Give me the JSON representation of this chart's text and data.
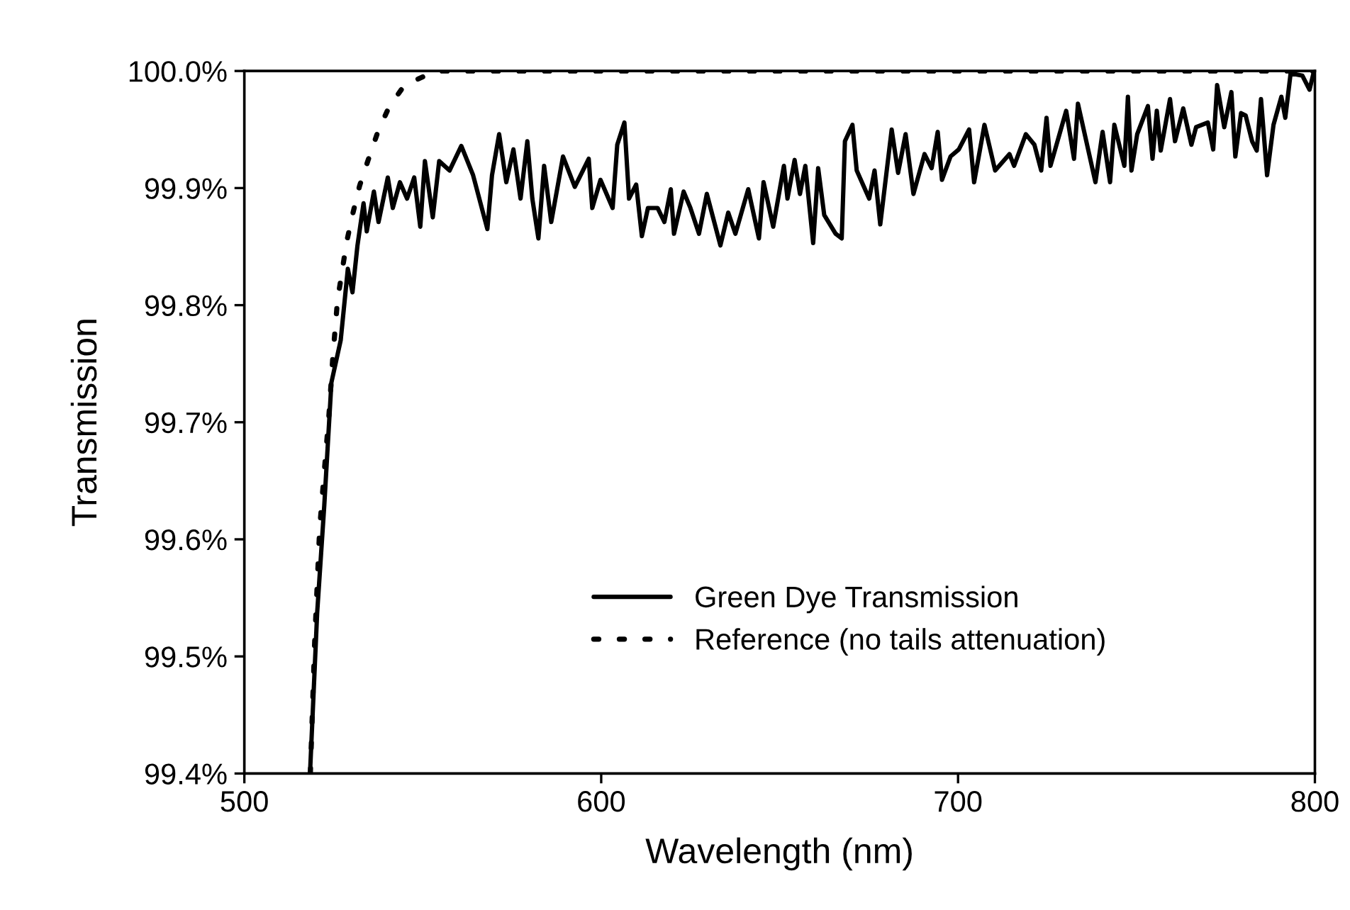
{
  "chart_data": {
    "type": "line",
    "xlabel": "Wavelength (nm)",
    "ylabel": "Transmission",
    "xlim": [
      500,
      800
    ],
    "xticks": [
      500,
      600,
      700,
      800
    ],
    "ylim": [
      99.4,
      100.0
    ],
    "yticks": [
      {
        "value": 99.4,
        "label": "99.4%"
      },
      {
        "value": 99.5,
        "label": "99.5%"
      },
      {
        "value": 99.6,
        "label": "99.6%"
      },
      {
        "value": 99.7,
        "label": "99.7%"
      },
      {
        "value": 99.8,
        "label": "99.8%"
      },
      {
        "value": 99.9,
        "label": "99.9%"
      },
      {
        "value": 100.0,
        "label": "100.0%"
      }
    ],
    "grid": false,
    "legend": "bottom right",
    "marker": "none",
    "series": [
      {
        "name": "Green Dye Transmission",
        "color": "#000000",
        "line_style": "solid",
        "x": [
          518.4,
          520.4,
          522.4,
          524.4,
          527.0,
          529.0,
          530.3,
          531.7,
          533.4,
          534.3,
          536.3,
          537.6,
          540.2,
          541.6,
          543.6,
          545.6,
          547.6,
          549.3,
          550.6,
          552.8,
          554.6,
          557.5,
          560.8,
          564.1,
          568.1,
          569.4,
          571.4,
          573.4,
          575.4,
          577.4,
          579.3,
          580.7,
          582.4,
          584.0,
          586.0,
          589.3,
          592.6,
          596.5,
          597.5,
          599.8,
          603.2,
          604.5,
          606.5,
          607.8,
          609.8,
          611.4,
          613.1,
          615.8,
          617.7,
          619.5,
          620.4,
          623.1,
          625.0,
          627.4,
          629.6,
          633.4,
          635.6,
          637.6,
          641.2,
          644.2,
          645.5,
          648.2,
          651.2,
          652.2,
          654.2,
          655.7,
          657.2,
          659.4,
          660.8,
          662.5,
          665.7,
          667.4,
          668.3,
          670.4,
          671.6,
          675.1,
          676.6,
          678.2,
          681.4,
          683.2,
          685.3,
          687.5,
          690.6,
          692.6,
          694.3,
          695.5,
          697.9,
          700.2,
          703.1,
          704.5,
          707.4,
          710.4,
          714.4,
          715.7,
          719.0,
          721.4,
          723.3,
          724.8,
          725.9,
          730.3,
          732.5,
          733.6,
          738.5,
          740.5,
          742.6,
          743.8,
          746.6,
          747.6,
          748.6,
          750.2,
          753.2,
          754.5,
          755.7,
          756.8,
          759.4,
          760.8,
          763.1,
          765.4,
          766.7,
          770.0,
          771.5,
          772.6,
          774.6,
          776.6,
          777.7,
          779.3,
          780.6,
          782.4,
          783.7,
          784.9,
          786.6,
          788.4,
          790.6,
          791.7,
          793.2,
          796.5,
          798.5,
          799.6
        ],
        "values": [
          99.4,
          99.537,
          99.629,
          99.734,
          99.77,
          99.831,
          99.811,
          99.851,
          99.887,
          99.863,
          99.897,
          99.871,
          99.909,
          99.883,
          99.905,
          99.891,
          99.909,
          99.867,
          99.923,
          99.875,
          99.923,
          99.915,
          99.936,
          99.911,
          99.865,
          99.911,
          99.946,
          99.905,
          99.933,
          99.891,
          99.94,
          99.891,
          99.857,
          99.919,
          99.871,
          99.927,
          99.901,
          99.925,
          99.883,
          99.907,
          99.883,
          99.937,
          99.956,
          99.891,
          99.903,
          99.859,
          99.883,
          99.883,
          99.871,
          99.899,
          99.861,
          99.897,
          99.883,
          99.861,
          99.895,
          99.851,
          99.879,
          99.861,
          99.899,
          99.857,
          99.905,
          99.867,
          99.919,
          99.891,
          99.924,
          99.895,
          99.919,
          99.853,
          99.917,
          99.877,
          99.861,
          99.857,
          99.94,
          99.954,
          99.915,
          99.891,
          99.915,
          99.869,
          99.95,
          99.913,
          99.946,
          99.895,
          99.929,
          99.917,
          99.948,
          99.907,
          99.927,
          99.933,
          99.95,
          99.905,
          99.954,
          99.915,
          99.929,
          99.919,
          99.946,
          99.937,
          99.915,
          99.96,
          99.919,
          99.966,
          99.925,
          99.972,
          99.905,
          99.948,
          99.905,
          99.954,
          99.919,
          99.978,
          99.915,
          99.946,
          99.97,
          99.925,
          99.966,
          99.932,
          99.976,
          99.94,
          99.968,
          99.937,
          99.952,
          99.956,
          99.933,
          99.988,
          99.952,
          99.982,
          99.927,
          99.964,
          99.962,
          99.94,
          99.932,
          99.976,
          99.911,
          99.954,
          99.978,
          99.96,
          99.998,
          99.996,
          99.984,
          99.998
        ]
      },
      {
        "name": "Reference (no tails attenuation)",
        "color": "#000000",
        "line_style": "dotted",
        "x": [
          518.5,
          519.7,
          521.1,
          522.4,
          523.7,
          524.8,
          526.1,
          527.4,
          528.6,
          530.3,
          532.3,
          534.7,
          537.3,
          540.5,
          544.9,
          552.2,
          555,
          800
        ],
        "values": [
          99.4,
          99.512,
          99.609,
          99.658,
          99.706,
          99.756,
          99.804,
          99.829,
          99.853,
          99.877,
          99.902,
          99.924,
          99.947,
          99.969,
          99.988,
          99.998,
          100.0,
          100.0
        ]
      }
    ]
  }
}
